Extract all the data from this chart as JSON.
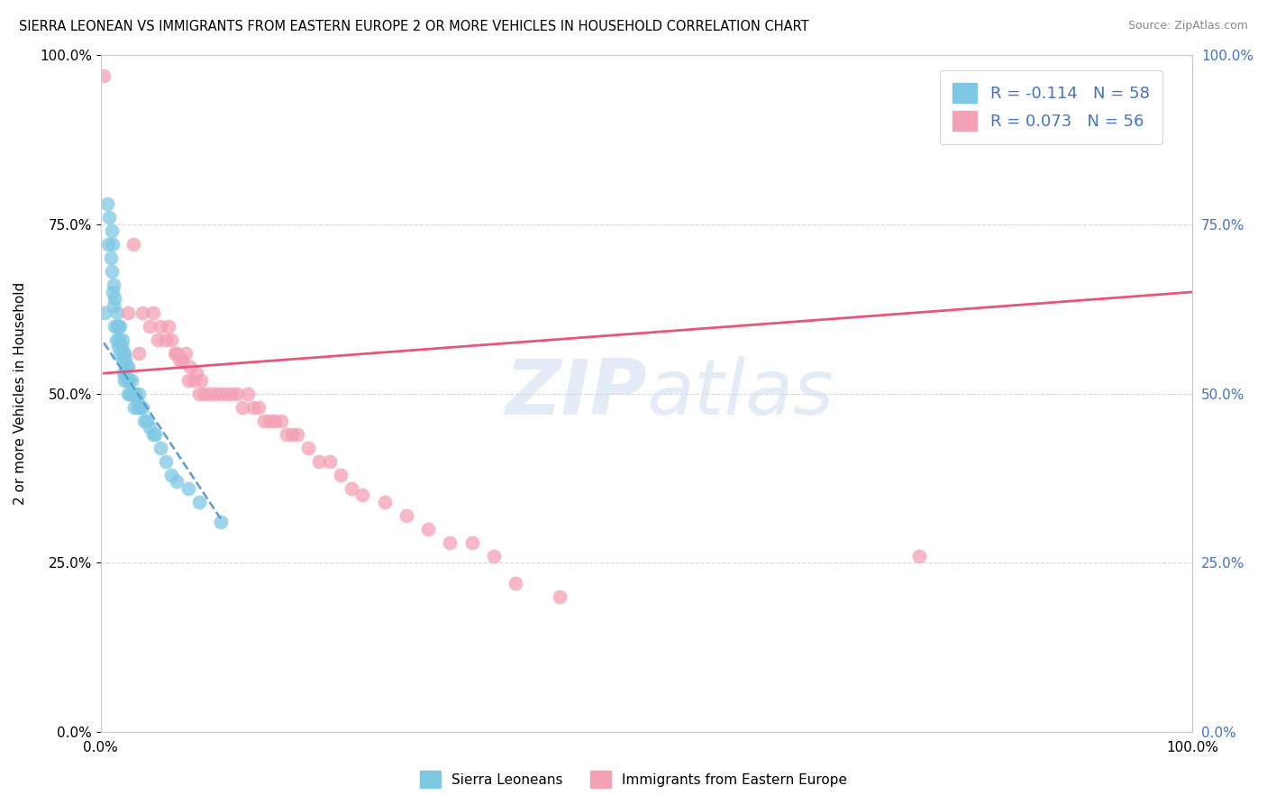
{
  "title": "SIERRA LEONEAN VS IMMIGRANTS FROM EASTERN EUROPE 2 OR MORE VEHICLES IN HOUSEHOLD CORRELATION CHART",
  "source": "Source: ZipAtlas.com",
  "ylabel": "2 or more Vehicles in Household",
  "color_blue": "#7ec8e3",
  "color_pink": "#f4a0b5",
  "color_blue_line": "#5b9bd5",
  "color_pink_line": "#e8547a",
  "watermark_zip": "ZIP",
  "watermark_atlas": "atlas",
  "sierra_leonean_x": [
    0.004,
    0.006,
    0.007,
    0.008,
    0.009,
    0.01,
    0.01,
    0.011,
    0.011,
    0.012,
    0.012,
    0.013,
    0.013,
    0.014,
    0.015,
    0.015,
    0.016,
    0.016,
    0.017,
    0.018,
    0.018,
    0.019,
    0.02,
    0.02,
    0.021,
    0.021,
    0.022,
    0.022,
    0.023,
    0.023,
    0.024,
    0.024,
    0.025,
    0.025,
    0.026,
    0.027,
    0.028,
    0.029,
    0.03,
    0.031,
    0.032,
    0.033,
    0.034,
    0.035,
    0.036,
    0.038,
    0.04,
    0.042,
    0.045,
    0.048,
    0.05,
    0.055,
    0.06,
    0.065,
    0.07,
    0.08,
    0.09,
    0.11
  ],
  "sierra_leonean_y": [
    0.62,
    0.78,
    0.72,
    0.76,
    0.7,
    0.74,
    0.68,
    0.72,
    0.65,
    0.66,
    0.63,
    0.6,
    0.64,
    0.58,
    0.62,
    0.6,
    0.6,
    0.57,
    0.58,
    0.56,
    0.6,
    0.57,
    0.58,
    0.55,
    0.56,
    0.53,
    0.56,
    0.52,
    0.55,
    0.53,
    0.54,
    0.52,
    0.54,
    0.5,
    0.52,
    0.5,
    0.52,
    0.5,
    0.5,
    0.48,
    0.5,
    0.49,
    0.48,
    0.5,
    0.48,
    0.48,
    0.46,
    0.46,
    0.45,
    0.44,
    0.44,
    0.42,
    0.4,
    0.38,
    0.37,
    0.36,
    0.34,
    0.31
  ],
  "eastern_europe_x": [
    0.003,
    0.03,
    0.038,
    0.045,
    0.048,
    0.052,
    0.055,
    0.06,
    0.062,
    0.065,
    0.068,
    0.07,
    0.072,
    0.075,
    0.078,
    0.08,
    0.082,
    0.085,
    0.088,
    0.09,
    0.092,
    0.095,
    0.1,
    0.105,
    0.11,
    0.115,
    0.12,
    0.125,
    0.13,
    0.135,
    0.14,
    0.145,
    0.15,
    0.155,
    0.16,
    0.165,
    0.17,
    0.175,
    0.18,
    0.19,
    0.2,
    0.21,
    0.22,
    0.23,
    0.24,
    0.26,
    0.28,
    0.3,
    0.32,
    0.34,
    0.36,
    0.38,
    0.42,
    0.75,
    0.025,
    0.035
  ],
  "eastern_europe_y": [
    0.97,
    0.72,
    0.62,
    0.6,
    0.62,
    0.58,
    0.6,
    0.58,
    0.6,
    0.58,
    0.56,
    0.56,
    0.55,
    0.55,
    0.56,
    0.52,
    0.54,
    0.52,
    0.53,
    0.5,
    0.52,
    0.5,
    0.5,
    0.5,
    0.5,
    0.5,
    0.5,
    0.5,
    0.48,
    0.5,
    0.48,
    0.48,
    0.46,
    0.46,
    0.46,
    0.46,
    0.44,
    0.44,
    0.44,
    0.42,
    0.4,
    0.4,
    0.38,
    0.36,
    0.35,
    0.34,
    0.32,
    0.3,
    0.28,
    0.28,
    0.26,
    0.22,
    0.2,
    0.26,
    0.62,
    0.56
  ],
  "sl_trendline_x": [
    0.003,
    0.11
  ],
  "sl_trendline_y": [
    0.575,
    0.315
  ],
  "ee_trendline_x": [
    0.003,
    1.0
  ],
  "ee_trendline_y": [
    0.53,
    0.65
  ],
  "ytick_vals": [
    0.0,
    0.25,
    0.5,
    0.75,
    1.0
  ],
  "ytick_labels": [
    "0.0%",
    "25.0%",
    "50.0%",
    "75.0%",
    "100.0%"
  ],
  "xtick_vals": [
    0.0,
    1.0
  ],
  "xtick_labels": [
    "0.0%",
    "100.0%"
  ],
  "legend_label_blue": "R = -0.114   N = 58",
  "legend_label_pink": "R = 0.073   N = 56",
  "bottom_legend_blue": "Sierra Leoneans",
  "bottom_legend_pink": "Immigrants from Eastern Europe"
}
